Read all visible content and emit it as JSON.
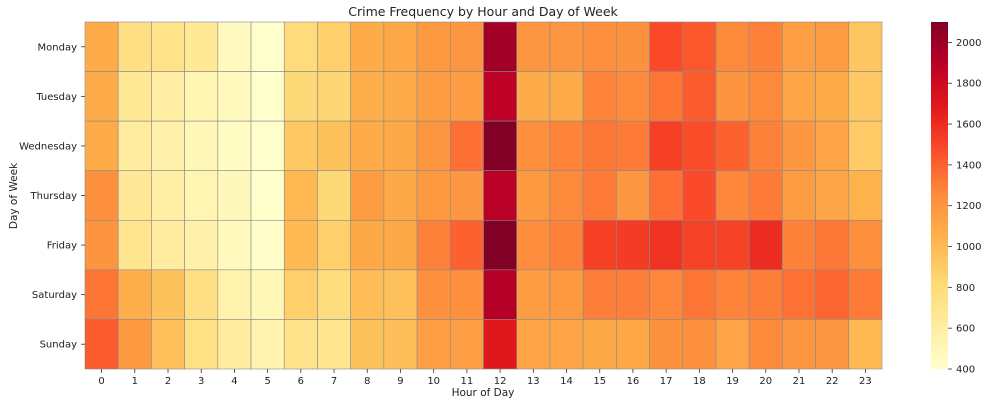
{
  "chart_data": {
    "type": "heatmap",
    "title": "Crime Frequency by Hour and Day of Week",
    "xlabel": "Hour of Day",
    "ylabel": "Day of Week",
    "x_categories": [
      "0",
      "1",
      "2",
      "3",
      "4",
      "5",
      "6",
      "7",
      "8",
      "9",
      "10",
      "11",
      "12",
      "13",
      "14",
      "15",
      "16",
      "17",
      "18",
      "19",
      "20",
      "21",
      "22",
      "23"
    ],
    "y_categories": [
      "Monday",
      "Tuesday",
      "Wednesday",
      "Thursday",
      "Friday",
      "Saturday",
      "Sunday"
    ],
    "values": [
      [
        1080,
        760,
        720,
        660,
        460,
        380,
        800,
        880,
        1080,
        1100,
        1180,
        1200,
        1980,
        1200,
        1200,
        1240,
        1220,
        1480,
        1430,
        1260,
        1290,
        1150,
        1170,
        930
      ],
      [
        1080,
        660,
        600,
        520,
        470,
        400,
        820,
        840,
        1060,
        1080,
        1160,
        1160,
        1880,
        1080,
        1080,
        1280,
        1260,
        1330,
        1420,
        1210,
        1260,
        1110,
        1080,
        910
      ],
      [
        1080,
        620,
        560,
        500,
        440,
        380,
        920,
        950,
        1080,
        1090,
        1200,
        1350,
        2100,
        1240,
        1280,
        1320,
        1310,
        1520,
        1470,
        1400,
        1290,
        1190,
        1120,
        900
      ],
      [
        1230,
        650,
        590,
        520,
        480,
        400,
        1010,
        820,
        1160,
        1090,
        1180,
        1190,
        1900,
        1180,
        1260,
        1310,
        1200,
        1350,
        1480,
        1270,
        1310,
        1160,
        1110,
        1040
      ],
      [
        1210,
        700,
        620,
        560,
        470,
        410,
        1000,
        880,
        1090,
        1090,
        1290,
        1400,
        2110,
        1250,
        1290,
        1520,
        1540,
        1570,
        1510,
        1510,
        1600,
        1290,
        1320,
        1240
      ],
      [
        1330,
        1060,
        950,
        760,
        550,
        500,
        880,
        780,
        980,
        960,
        1230,
        1240,
        1920,
        1160,
        1180,
        1300,
        1300,
        1270,
        1330,
        1280,
        1300,
        1340,
        1380,
        1310
      ],
      [
        1420,
        1180,
        960,
        750,
        620,
        540,
        720,
        700,
        950,
        970,
        1150,
        1150,
        1700,
        1120,
        1120,
        1090,
        1100,
        1220,
        1230,
        1120,
        1260,
        1200,
        1190,
        1000
      ]
    ],
    "colormap": "YlOrRd",
    "colorbar": {
      "range": [
        400,
        2100
      ],
      "ticks": [
        400,
        600,
        800,
        1000,
        1200,
        1400,
        1600,
        1800,
        2000
      ]
    },
    "grid": true,
    "legend": "colorbar-right"
  }
}
